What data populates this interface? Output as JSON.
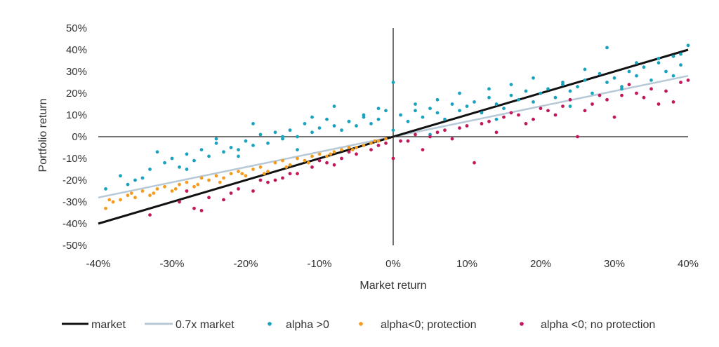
{
  "chart_data": {
    "type": "scatter",
    "title": "",
    "xlabel": "Market return",
    "ylabel": "Portfolio return",
    "xlim": [
      -0.4,
      0.4
    ],
    "ylim": [
      -0.5,
      0.5
    ],
    "x_ticks": [
      -0.4,
      -0.3,
      -0.2,
      -0.1,
      0,
      0.1,
      0.2,
      0.3,
      0.4
    ],
    "x_tick_labels": [
      "-40%",
      "-30%",
      "-20%",
      "-10%",
      "0%",
      "10%",
      "20%",
      "30%",
      "40%"
    ],
    "y_ticks": [
      0.5,
      0.4,
      0.3,
      0.2,
      0.1,
      0,
      -0.1,
      -0.2,
      -0.3,
      -0.4,
      -0.5
    ],
    "y_tick_labels": [
      "50%",
      "40%",
      "30%",
      "20%",
      "10%",
      "0%",
      "-10%",
      "-20%",
      "-30%",
      "-40%",
      "-50%"
    ],
    "grid": false,
    "legend_position": "bottom",
    "lines": [
      {
        "name": "market",
        "slope": 1.0,
        "color": "#111111"
      },
      {
        "name": "0.7x market",
        "slope": 0.7,
        "color": "#b7c8d6"
      }
    ],
    "series": [
      {
        "name": "alpha >0",
        "color": "#1aa3bf",
        "x": [
          -0.39,
          -0.37,
          -0.36,
          -0.34,
          -0.33,
          -0.31,
          -0.3,
          -0.29,
          -0.28,
          -0.27,
          -0.26,
          -0.25,
          -0.24,
          -0.23,
          -0.22,
          -0.21,
          -0.2,
          -0.19,
          -0.18,
          -0.17,
          -0.16,
          -0.15,
          -0.14,
          -0.13,
          -0.12,
          -0.11,
          -0.1,
          -0.09,
          -0.08,
          -0.07,
          -0.06,
          -0.05,
          -0.04,
          -0.03,
          -0.02,
          -0.01,
          0,
          0.01,
          0.02,
          0.03,
          0.04,
          0.05,
          0.06,
          0.07,
          0.08,
          0.09,
          0.1,
          0.11,
          0.12,
          0.13,
          0.14,
          0.15,
          0.16,
          0.17,
          0.18,
          0.19,
          0.2,
          0.21,
          0.22,
          0.23,
          0.24,
          0.25,
          0.26,
          0.27,
          0.28,
          0.29,
          0.3,
          0.31,
          0.32,
          0.33,
          0.34,
          0.35,
          0.36,
          0.37,
          0.38,
          0.39,
          0.4,
          -0.32,
          -0.24,
          -0.19,
          -0.15,
          -0.11,
          -0.08,
          -0.06,
          -0.02,
          0.0,
          0.03,
          0.06,
          0.09,
          0.13,
          0.16,
          0.19,
          0.23,
          0.26,
          0.29,
          0.33,
          0.36,
          0.39,
          -0.35,
          -0.28,
          -0.21,
          -0.13,
          -0.04,
          0.05,
          0.14,
          0.24,
          0.31,
          0.38
        ],
        "y": [
          -0.24,
          -0.18,
          -0.22,
          -0.19,
          -0.15,
          -0.12,
          -0.1,
          -0.14,
          -0.08,
          -0.11,
          -0.06,
          -0.09,
          -0.03,
          -0.07,
          -0.05,
          -0.06,
          -0.02,
          -0.04,
          0.01,
          -0.03,
          0.02,
          -0.01,
          0.03,
          0.0,
          0.06,
          0.02,
          0.04,
          0.08,
          0.05,
          0.03,
          0.07,
          0.05,
          0.09,
          0.06,
          0.08,
          0.12,
          0.03,
          0.1,
          0.07,
          0.12,
          0.09,
          0.13,
          0.11,
          0.08,
          0.15,
          0.12,
          0.14,
          0.16,
          0.11,
          0.18,
          0.15,
          0.13,
          0.19,
          0.17,
          0.21,
          0.16,
          0.2,
          0.22,
          0.18,
          0.24,
          0.21,
          0.23,
          0.26,
          0.2,
          0.29,
          0.25,
          0.27,
          0.23,
          0.3,
          0.28,
          0.32,
          0.26,
          0.34,
          0.3,
          0.37,
          0.33,
          0.42,
          -0.07,
          -0.01,
          0.06,
          0.0,
          0.09,
          0.14,
          0.07,
          0.13,
          0.25,
          0.15,
          0.17,
          0.2,
          0.22,
          0.24,
          0.27,
          0.25,
          0.31,
          0.41,
          0.34,
          0.36,
          0.38,
          -0.2,
          -0.15,
          -0.09,
          -0.06,
          0.1,
          0.01,
          0.08,
          0.14,
          0.22,
          0.28
        ]
      },
      {
        "name": "alpha<0; protection",
        "color": "#f39c1f",
        "x": [
          -0.39,
          -0.38,
          -0.37,
          -0.36,
          -0.35,
          -0.34,
          -0.33,
          -0.32,
          -0.31,
          -0.3,
          -0.29,
          -0.28,
          -0.27,
          -0.26,
          -0.25,
          -0.24,
          -0.23,
          -0.22,
          -0.21,
          -0.2,
          -0.19,
          -0.18,
          -0.17,
          -0.16,
          -0.15,
          -0.14,
          -0.13,
          -0.12,
          -0.11,
          -0.1,
          -0.09,
          -0.08,
          -0.07,
          -0.06,
          -0.05,
          -0.04,
          -0.03,
          -0.02,
          -0.01,
          -0.385,
          -0.355,
          -0.325,
          -0.295,
          -0.265,
          -0.235,
          -0.205,
          -0.175,
          -0.145,
          -0.115,
          -0.085,
          -0.055,
          -0.025
        ],
        "y": [
          -0.33,
          -0.3,
          -0.29,
          -0.27,
          -0.28,
          -0.25,
          -0.27,
          -0.24,
          -0.23,
          -0.25,
          -0.22,
          -0.21,
          -0.23,
          -0.19,
          -0.2,
          -0.18,
          -0.19,
          -0.17,
          -0.16,
          -0.18,
          -0.15,
          -0.14,
          -0.16,
          -0.12,
          -0.11,
          -0.13,
          -0.1,
          -0.11,
          -0.09,
          -0.08,
          -0.09,
          -0.07,
          -0.06,
          -0.05,
          -0.05,
          -0.04,
          -0.03,
          -0.02,
          -0.01,
          -0.29,
          -0.26,
          -0.26,
          -0.24,
          -0.22,
          -0.21,
          -0.17,
          -0.17,
          -0.14,
          -0.12,
          -0.08,
          -0.06,
          -0.02
        ]
      },
      {
        "name": "alpha <0; no protection",
        "color": "#c2185b",
        "x": [
          -0.33,
          -0.29,
          -0.27,
          -0.25,
          -0.23,
          -0.21,
          -0.19,
          -0.17,
          -0.15,
          -0.13,
          -0.11,
          -0.09,
          -0.07,
          -0.05,
          -0.03,
          -0.01,
          0.0,
          0.01,
          0.03,
          0.05,
          0.07,
          0.09,
          0.11,
          0.13,
          0.15,
          0.17,
          0.19,
          0.21,
          0.23,
          0.25,
          0.27,
          0.29,
          0.31,
          0.33,
          0.35,
          0.37,
          0.39,
          -0.28,
          -0.22,
          -0.18,
          -0.14,
          -0.1,
          -0.06,
          -0.02,
          0.02,
          0.06,
          0.1,
          0.12,
          0.16,
          0.2,
          0.24,
          0.28,
          0.32,
          0.36,
          0.4,
          -0.26,
          -0.16,
          -0.08,
          0.04,
          0.08,
          0.14,
          0.18,
          0.22,
          0.26,
          0.3,
          0.34,
          0.38
        ],
        "y": [
          -0.36,
          -0.3,
          -0.33,
          -0.28,
          -0.29,
          -0.24,
          -0.25,
          -0.21,
          -0.19,
          -0.17,
          -0.14,
          -0.12,
          -0.1,
          -0.08,
          -0.06,
          -0.03,
          -0.1,
          -0.02,
          0.01,
          0.0,
          0.03,
          0.04,
          -0.12,
          0.07,
          0.09,
          0.1,
          0.08,
          0.12,
          0.14,
          0.0,
          0.15,
          0.17,
          0.19,
          0.2,
          0.22,
          0.21,
          0.25,
          -0.25,
          -0.26,
          -0.2,
          -0.17,
          -0.11,
          -0.07,
          -0.04,
          -0.02,
          0.02,
          0.05,
          0.06,
          0.11,
          0.13,
          0.17,
          0.19,
          0.24,
          0.15,
          0.26,
          -0.34,
          -0.2,
          -0.13,
          -0.06,
          -0.01,
          0.02,
          0.06,
          0.1,
          0.12,
          0.09,
          0.18,
          0.16
        ]
      }
    ]
  }
}
